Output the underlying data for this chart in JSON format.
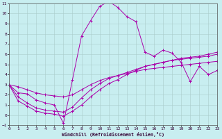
{
  "xlabel": "Windchill (Refroidissement éolien,°C)",
  "bg_color": "#c8eef0",
  "grid_color": "#aacccc",
  "line_color": "#aa00aa",
  "xlim": [
    0,
    23
  ],
  "ylim": [
    -1,
    11
  ],
  "xticks": [
    0,
    1,
    2,
    3,
    4,
    5,
    6,
    7,
    8,
    9,
    10,
    11,
    12,
    13,
    14,
    15,
    16,
    17,
    18,
    19,
    20,
    21,
    22,
    23
  ],
  "yticks": [
    -1,
    0,
    1,
    2,
    3,
    4,
    5,
    6,
    7,
    8,
    9,
    10,
    11
  ],
  "line1_x": [
    0,
    1,
    2,
    3,
    4,
    5,
    6,
    7,
    8,
    9,
    10,
    11,
    12,
    13,
    14,
    15,
    16,
    17,
    18,
    19,
    20,
    21,
    22,
    23
  ],
  "line1_y": [
    3.0,
    2.2,
    2.1,
    1.5,
    1.2,
    1.0,
    -0.8,
    3.5,
    7.8,
    9.3,
    10.7,
    11.2,
    10.6,
    9.7,
    9.2,
    6.2,
    5.8,
    6.4,
    6.1,
    5.2,
    3.3,
    4.8,
    4.0,
    4.4
  ],
  "line2_x": [
    0,
    1,
    2,
    3,
    4,
    5,
    6,
    7,
    8,
    9,
    10,
    11,
    12,
    13,
    14,
    15,
    16,
    17,
    18,
    19,
    20,
    21,
    22,
    23
  ],
  "line2_y": [
    3.0,
    2.8,
    2.5,
    2.2,
    2.0,
    1.9,
    1.8,
    2.0,
    2.5,
    3.0,
    3.4,
    3.7,
    3.9,
    4.1,
    4.3,
    4.5,
    4.6,
    4.7,
    4.8,
    4.9,
    5.0,
    5.1,
    5.2,
    5.3
  ],
  "line3_x": [
    0,
    1,
    2,
    3,
    4,
    5,
    6,
    7,
    8,
    9,
    10,
    11,
    12,
    13,
    14,
    15,
    16,
    17,
    18,
    19,
    20,
    21,
    22,
    23
  ],
  "line3_y": [
    3.0,
    1.4,
    0.9,
    0.4,
    0.2,
    0.1,
    -0.1,
    0.4,
    1.0,
    1.8,
    2.5,
    3.1,
    3.5,
    4.0,
    4.4,
    4.8,
    5.0,
    5.2,
    5.4,
    5.5,
    5.6,
    5.7,
    5.8,
    6.0
  ],
  "line4_x": [
    0,
    1,
    2,
    3,
    4,
    5,
    6,
    7,
    8,
    9,
    10,
    11,
    12,
    13,
    14,
    15,
    16,
    17,
    18,
    19,
    20,
    21,
    22,
    23
  ],
  "line4_y": [
    3.0,
    1.8,
    1.2,
    0.7,
    0.5,
    0.4,
    0.3,
    0.8,
    1.7,
    2.5,
    3.1,
    3.6,
    3.9,
    4.2,
    4.5,
    4.8,
    5.0,
    5.2,
    5.4,
    5.6,
    5.7,
    5.8,
    6.0,
    6.2
  ]
}
